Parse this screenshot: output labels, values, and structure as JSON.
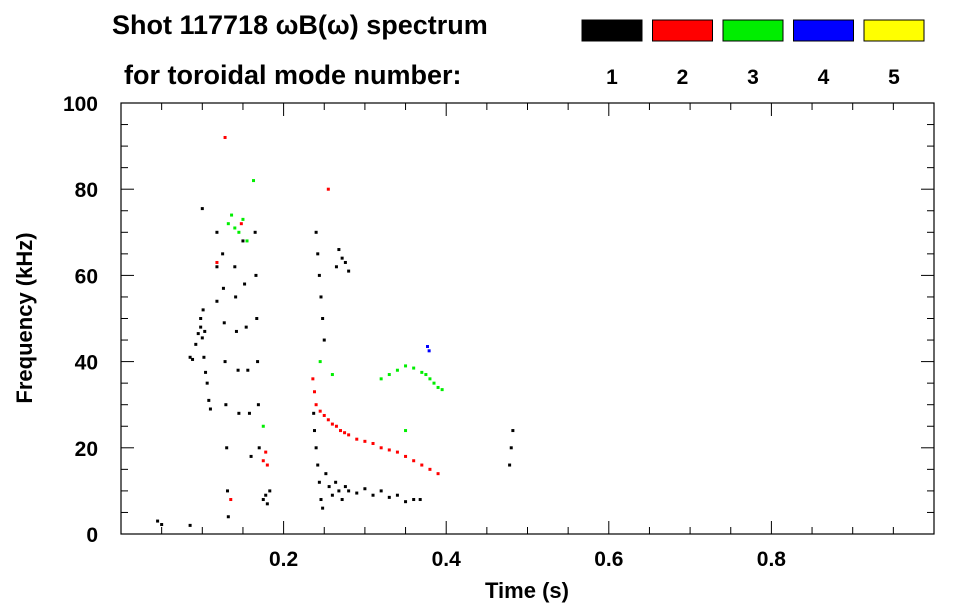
{
  "chart_data": {
    "type": "heatmap",
    "title_line1": "Shot 117718 ωB(ω) spectrum",
    "title_line2": "for toroidal mode number:",
    "xlabel": "Time (s)",
    "ylabel": "Frequency (kHz)",
    "xlim": [
      0.0,
      1.0
    ],
    "ylim": [
      0,
      100
    ],
    "x_ticks": [
      0.2,
      0.4,
      0.6,
      0.8
    ],
    "x_tick_labels": [
      "0.2",
      "0.4",
      "0.6",
      "0.8"
    ],
    "y_ticks": [
      0,
      20,
      40,
      60,
      80,
      100
    ],
    "y_tick_labels": [
      "0",
      "20",
      "40",
      "60",
      "80",
      "100"
    ],
    "legend": [
      {
        "label": "1",
        "color": "#000000"
      },
      {
        "label": "2",
        "color": "#ff0000"
      },
      {
        "label": "3",
        "color": "#00ee00"
      },
      {
        "label": "4",
        "color": "#0000ff"
      },
      {
        "label": "5",
        "color": "#ffff00"
      }
    ],
    "series": [
      {
        "mode": 1,
        "color": "#000000",
        "points": [
          [
            0.045,
            3.0
          ],
          [
            0.05,
            2.2
          ],
          [
            0.085,
            2.0
          ],
          [
            0.085,
            41.0
          ],
          [
            0.088,
            40.5
          ],
          [
            0.092,
            44.0
          ],
          [
            0.095,
            46.5
          ],
          [
            0.098,
            48.0
          ],
          [
            0.1,
            45.5
          ],
          [
            0.102,
            41.0
          ],
          [
            0.104,
            37.5
          ],
          [
            0.106,
            35.0
          ],
          [
            0.108,
            31.0
          ],
          [
            0.11,
            29.0
          ],
          [
            0.098,
            50.0
          ],
          [
            0.101,
            52.0
          ],
          [
            0.103,
            47.0
          ],
          [
            0.1,
            75.5
          ],
          [
            0.118,
            70.0
          ],
          [
            0.118,
            62.0
          ],
          [
            0.118,
            54.0
          ],
          [
            0.125,
            65.0
          ],
          [
            0.126,
            57.0
          ],
          [
            0.127,
            49.0
          ],
          [
            0.128,
            40.0
          ],
          [
            0.129,
            30.0
          ],
          [
            0.13,
            20.0
          ],
          [
            0.131,
            10.0
          ],
          [
            0.132,
            4.0
          ],
          [
            0.14,
            62.0
          ],
          [
            0.141,
            55.0
          ],
          [
            0.142,
            47.0
          ],
          [
            0.144,
            38.0
          ],
          [
            0.145,
            28.0
          ],
          [
            0.15,
            68.0
          ],
          [
            0.152,
            58.0
          ],
          [
            0.154,
            48.0
          ],
          [
            0.156,
            38.0
          ],
          [
            0.158,
            28.0
          ],
          [
            0.16,
            18.0
          ],
          [
            0.165,
            70.0
          ],
          [
            0.166,
            60.0
          ],
          [
            0.167,
            50.0
          ],
          [
            0.168,
            40.0
          ],
          [
            0.169,
            30.0
          ],
          [
            0.17,
            20.0
          ],
          [
            0.175,
            8.0
          ],
          [
            0.178,
            9.0
          ],
          [
            0.18,
            7.0
          ],
          [
            0.183,
            10.0
          ],
          [
            0.237,
            28.0
          ],
          [
            0.238,
            24.0
          ],
          [
            0.24,
            20.0
          ],
          [
            0.242,
            16.0
          ],
          [
            0.244,
            12.0
          ],
          [
            0.246,
            8.0
          ],
          [
            0.248,
            6.0
          ],
          [
            0.24,
            70.0
          ],
          [
            0.242,
            65.0
          ],
          [
            0.244,
            60.0
          ],
          [
            0.246,
            55.0
          ],
          [
            0.248,
            50.0
          ],
          [
            0.25,
            45.0
          ],
          [
            0.252,
            14.0
          ],
          [
            0.256,
            11.0
          ],
          [
            0.26,
            9.0
          ],
          [
            0.264,
            12.0
          ],
          [
            0.268,
            10.0
          ],
          [
            0.272,
            8.0
          ],
          [
            0.276,
            11.0
          ],
          [
            0.265,
            62.0
          ],
          [
            0.268,
            66.0
          ],
          [
            0.272,
            64.0
          ],
          [
            0.276,
            63.0
          ],
          [
            0.28,
            61.0
          ],
          [
            0.28,
            10.0
          ],
          [
            0.29,
            9.5
          ],
          [
            0.3,
            10.5
          ],
          [
            0.31,
            9.0
          ],
          [
            0.32,
            10.0
          ],
          [
            0.33,
            8.5
          ],
          [
            0.34,
            9.0
          ],
          [
            0.35,
            7.5
          ],
          [
            0.36,
            8.0
          ],
          [
            0.368,
            8.0
          ],
          [
            0.478,
            16.0
          ],
          [
            0.48,
            20.0
          ],
          [
            0.482,
            24.0
          ]
        ]
      },
      {
        "mode": 2,
        "color": "#ff0000",
        "points": [
          [
            0.128,
            92.0
          ],
          [
            0.118,
            63.0
          ],
          [
            0.148,
            72.0
          ],
          [
            0.135,
            8.0
          ],
          [
            0.175,
            17.0
          ],
          [
            0.178,
            19.0
          ],
          [
            0.18,
            16.0
          ],
          [
            0.255,
            80.0
          ],
          [
            0.236,
            36.0
          ],
          [
            0.238,
            33.0
          ],
          [
            0.24,
            30.0
          ],
          [
            0.245,
            28.5
          ],
          [
            0.25,
            27.5
          ],
          [
            0.255,
            26.5
          ],
          [
            0.26,
            25.5
          ],
          [
            0.265,
            25.0
          ],
          [
            0.27,
            24.0
          ],
          [
            0.275,
            23.5
          ],
          [
            0.28,
            23.0
          ],
          [
            0.29,
            22.0
          ],
          [
            0.3,
            21.5
          ],
          [
            0.31,
            21.0
          ],
          [
            0.32,
            20.0
          ],
          [
            0.33,
            19.5
          ],
          [
            0.34,
            19.0
          ],
          [
            0.35,
            18.0
          ],
          [
            0.36,
            17.0
          ],
          [
            0.37,
            16.0
          ],
          [
            0.38,
            15.0
          ],
          [
            0.39,
            14.0
          ]
        ]
      },
      {
        "mode": 3,
        "color": "#00ee00",
        "points": [
          [
            0.163,
            82.0
          ],
          [
            0.132,
            72.0
          ],
          [
            0.136,
            74.0
          ],
          [
            0.14,
            71.0
          ],
          [
            0.145,
            70.0
          ],
          [
            0.15,
            73.0
          ],
          [
            0.155,
            68.0
          ],
          [
            0.175,
            25.0
          ],
          [
            0.245,
            40.0
          ],
          [
            0.26,
            37.0
          ],
          [
            0.32,
            36.0
          ],
          [
            0.33,
            37.0
          ],
          [
            0.34,
            38.0
          ],
          [
            0.35,
            39.0
          ],
          [
            0.36,
            38.5
          ],
          [
            0.37,
            37.5
          ],
          [
            0.375,
            37.0
          ],
          [
            0.38,
            36.0
          ],
          [
            0.385,
            35.0
          ],
          [
            0.39,
            34.0
          ],
          [
            0.395,
            33.5
          ],
          [
            0.35,
            24.0
          ]
        ]
      },
      {
        "mode": 4,
        "color": "#0000ff",
        "points": [
          [
            0.377,
            43.5
          ],
          [
            0.379,
            42.5
          ]
        ]
      }
    ]
  }
}
